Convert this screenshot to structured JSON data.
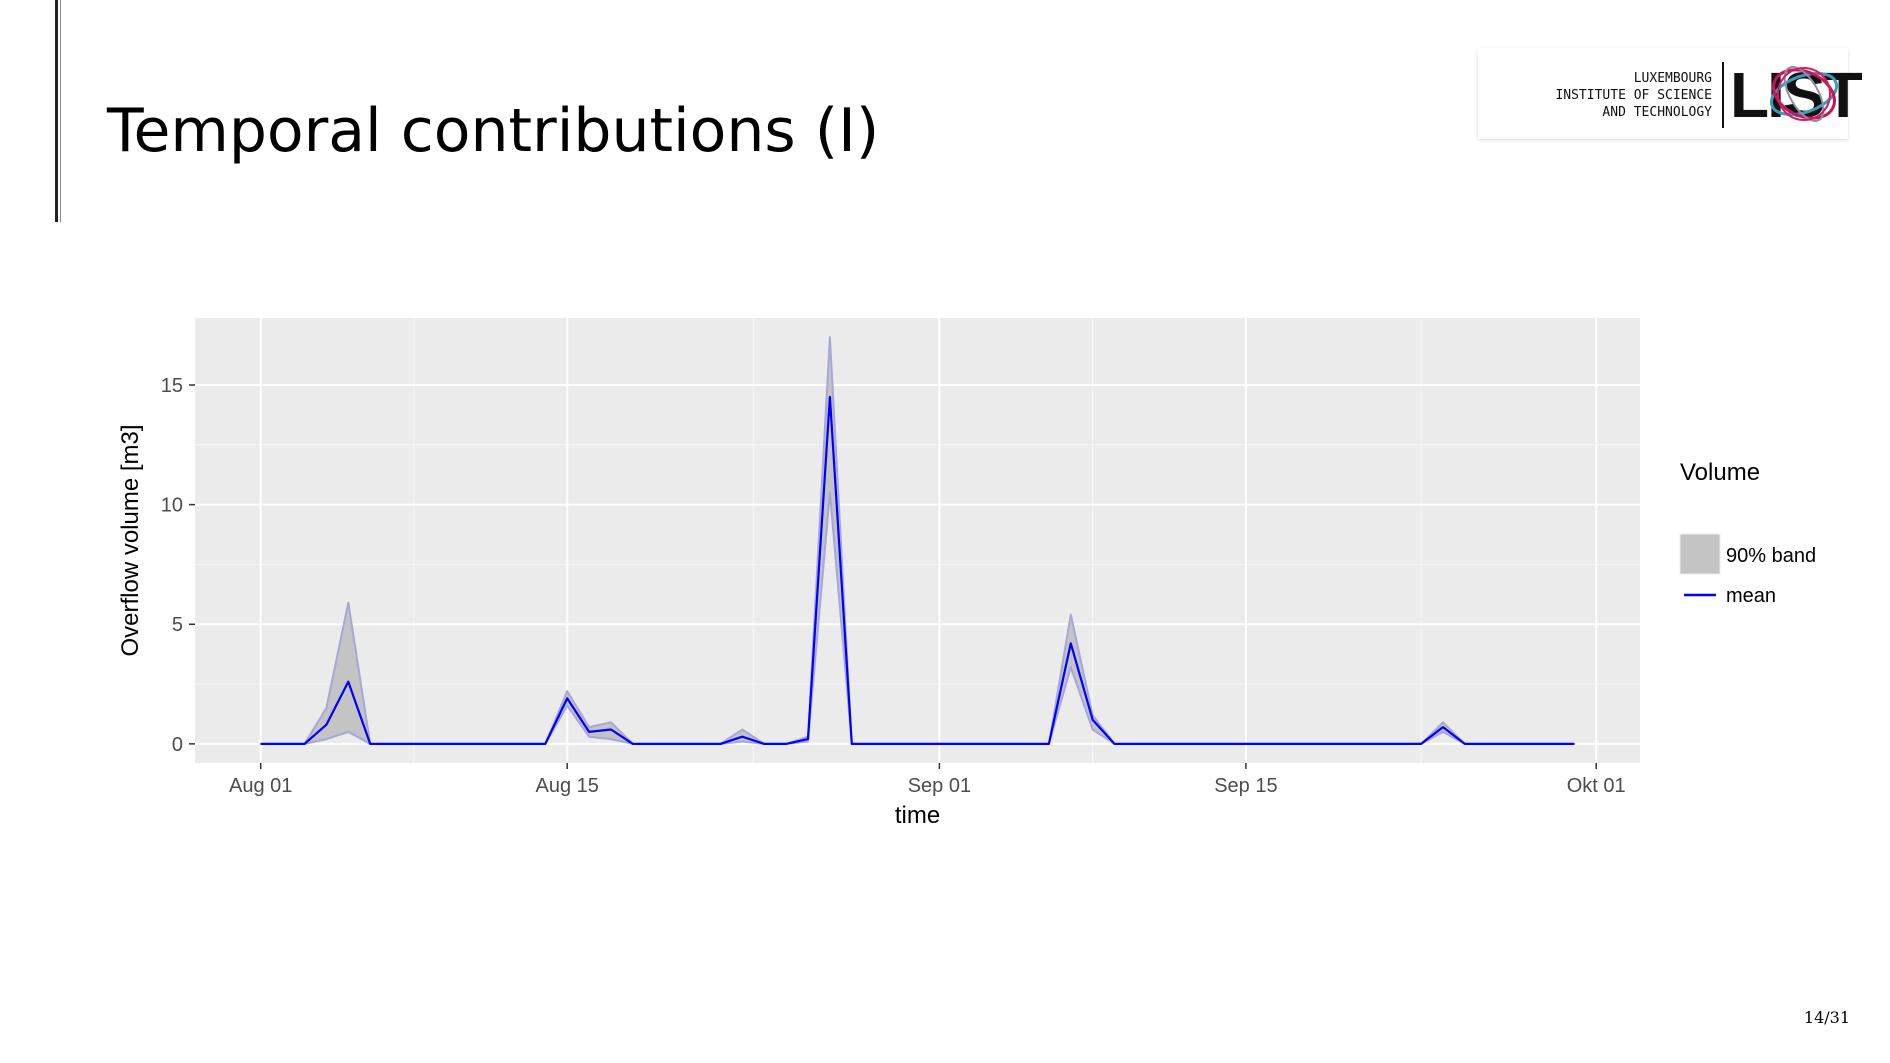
{
  "slide": {
    "title": "Temporal contributions (I)",
    "page": "14/31"
  },
  "logo": {
    "lines": [
      "LUXEMBOURG",
      "INSTITUTE OF SCIENCE",
      "AND TECHNOLOGY"
    ],
    "wordmark": "LIST"
  },
  "chart_data": {
    "type": "area",
    "xlabel": "time",
    "ylabel": "Overflow volume [m3]",
    "x_ticks": [
      "Aug 01",
      "Aug 15",
      "Sep 01",
      "Sep 15",
      "Okt 01"
    ],
    "x_tick_dates": [
      "2017-08-01",
      "2017-08-15",
      "2017-09-01",
      "2017-09-15",
      "2017-10-01"
    ],
    "y_ticks": [
      0,
      5,
      10,
      15
    ],
    "ylim": [
      -0.8,
      17.8
    ],
    "xlim": [
      "2017-07-29",
      "2017-10-03"
    ],
    "grid": true,
    "legend": {
      "title": "Volume",
      "position": "right",
      "entries": [
        "90% band",
        "mean"
      ]
    },
    "colors": {
      "band": "#c4c4c4",
      "band_edge": "#a7a7d8",
      "mean": "#0000ff",
      "panel": "#ebebeb"
    },
    "series": [
      {
        "name": "mean",
        "x": [
          "2017-08-01",
          "2017-08-02",
          "2017-08-03",
          "2017-08-04",
          "2017-08-05",
          "2017-08-06",
          "2017-08-07",
          "2017-08-08",
          "2017-08-09",
          "2017-08-10",
          "2017-08-11",
          "2017-08-12",
          "2017-08-13",
          "2017-08-14",
          "2017-08-15",
          "2017-08-16",
          "2017-08-17",
          "2017-08-18",
          "2017-08-19",
          "2017-08-20",
          "2017-08-21",
          "2017-08-22",
          "2017-08-23",
          "2017-08-24",
          "2017-08-25",
          "2017-08-26",
          "2017-08-27",
          "2017-08-28",
          "2017-08-29",
          "2017-08-30",
          "2017-08-31",
          "2017-09-01",
          "2017-09-02",
          "2017-09-03",
          "2017-09-04",
          "2017-09-05",
          "2017-09-06",
          "2017-09-07",
          "2017-09-08",
          "2017-09-09",
          "2017-09-10",
          "2017-09-11",
          "2017-09-12",
          "2017-09-13",
          "2017-09-14",
          "2017-09-15",
          "2017-09-16",
          "2017-09-17",
          "2017-09-18",
          "2017-09-19",
          "2017-09-20",
          "2017-09-21",
          "2017-09-22",
          "2017-09-23",
          "2017-09-24",
          "2017-09-25",
          "2017-09-26",
          "2017-09-27",
          "2017-09-28",
          "2017-09-29",
          "2017-09-30"
        ],
        "values": [
          0,
          0,
          0,
          0.8,
          2.6,
          0,
          0,
          0,
          0,
          0,
          0,
          0,
          0,
          0,
          1.9,
          0.5,
          0.6,
          0,
          0,
          0,
          0,
          0,
          0.3,
          0,
          0,
          0.2,
          14.5,
          0,
          0,
          0,
          0,
          0,
          0,
          0,
          0,
          0,
          0,
          4.2,
          1.0,
          0,
          0,
          0,
          0,
          0,
          0,
          0,
          0,
          0,
          0,
          0,
          0,
          0,
          0,
          0,
          0.7,
          0,
          0,
          0,
          0,
          0,
          0
        ]
      },
      {
        "name": "90% band",
        "x": [
          "2017-08-01",
          "2017-08-02",
          "2017-08-03",
          "2017-08-04",
          "2017-08-05",
          "2017-08-06",
          "2017-08-07",
          "2017-08-08",
          "2017-08-09",
          "2017-08-10",
          "2017-08-11",
          "2017-08-12",
          "2017-08-13",
          "2017-08-14",
          "2017-08-15",
          "2017-08-16",
          "2017-08-17",
          "2017-08-18",
          "2017-08-19",
          "2017-08-20",
          "2017-08-21",
          "2017-08-22",
          "2017-08-23",
          "2017-08-24",
          "2017-08-25",
          "2017-08-26",
          "2017-08-27",
          "2017-08-28",
          "2017-08-29",
          "2017-08-30",
          "2017-08-31",
          "2017-09-01",
          "2017-09-02",
          "2017-09-03",
          "2017-09-04",
          "2017-09-05",
          "2017-09-06",
          "2017-09-07",
          "2017-09-08",
          "2017-09-09",
          "2017-09-10",
          "2017-09-11",
          "2017-09-12",
          "2017-09-13",
          "2017-09-14",
          "2017-09-15",
          "2017-09-16",
          "2017-09-17",
          "2017-09-18",
          "2017-09-19",
          "2017-09-20",
          "2017-09-21",
          "2017-09-22",
          "2017-09-23",
          "2017-09-24",
          "2017-09-25",
          "2017-09-26",
          "2017-09-27",
          "2017-09-28",
          "2017-09-29",
          "2017-09-30"
        ],
        "lower": [
          0,
          0,
          0,
          0.2,
          0.5,
          0,
          0,
          0,
          0,
          0,
          0,
          0,
          0,
          0,
          1.6,
          0.3,
          0.2,
          0,
          0,
          0,
          0,
          0,
          0.1,
          0,
          0,
          0.1,
          10.5,
          0,
          0,
          0,
          0,
          0,
          0,
          0,
          0,
          0,
          0,
          3.2,
          0.6,
          0,
          0,
          0,
          0,
          0,
          0,
          0,
          0,
          0,
          0,
          0,
          0,
          0,
          0,
          0,
          0.5,
          0,
          0,
          0,
          0,
          0,
          0
        ],
        "upper": [
          0,
          0,
          0,
          1.5,
          5.9,
          0,
          0,
          0,
          0,
          0,
          0,
          0,
          0,
          0,
          2.2,
          0.7,
          0.9,
          0,
          0,
          0,
          0,
          0,
          0.6,
          0,
          0,
          0.3,
          17.0,
          0,
          0,
          0,
          0,
          0,
          0,
          0,
          0,
          0,
          0,
          5.4,
          1.2,
          0,
          0,
          0,
          0,
          0,
          0,
          0,
          0,
          0,
          0,
          0,
          0,
          0,
          0,
          0,
          0.9,
          0,
          0,
          0,
          0,
          0,
          0
        ]
      }
    ]
  }
}
